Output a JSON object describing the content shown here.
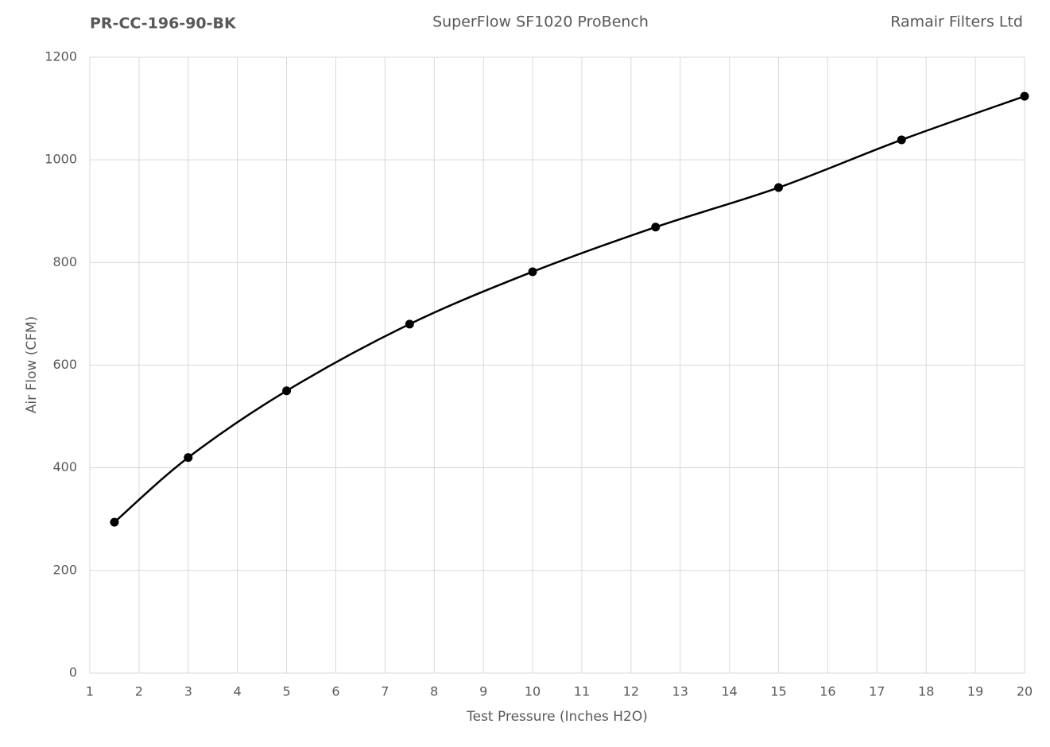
{
  "chart_data": {
    "type": "line",
    "title": "SuperFlow SF1020 ProBench",
    "left_title": "PR-CC-196-90-BK",
    "right_title": "Ramair Filters Ltd",
    "x_label": "Test Pressure (Inches H2O)",
    "y_label": "Air Flow (CFM)",
    "x": [
      1.5,
      3,
      5,
      7.5,
      10,
      12.5,
      15,
      17.5,
      20
    ],
    "series": [
      {
        "color": "#000000",
        "values": [
          294,
          420,
          550,
          680,
          782,
          869,
          946,
          1039,
          1124
        ]
      }
    ],
    "smooth": true,
    "markers": true,
    "xlim": [
      1,
      20
    ],
    "xticks": [
      1,
      2,
      3,
      4,
      5,
      6,
      7,
      8,
      9,
      10,
      11,
      12,
      13,
      14,
      15,
      16,
      17,
      18,
      19,
      20
    ],
    "ylim": [
      0,
      1200
    ],
    "yticks": [
      0,
      200,
      400,
      600,
      800,
      1000,
      1200
    ],
    "grid": true
  }
}
